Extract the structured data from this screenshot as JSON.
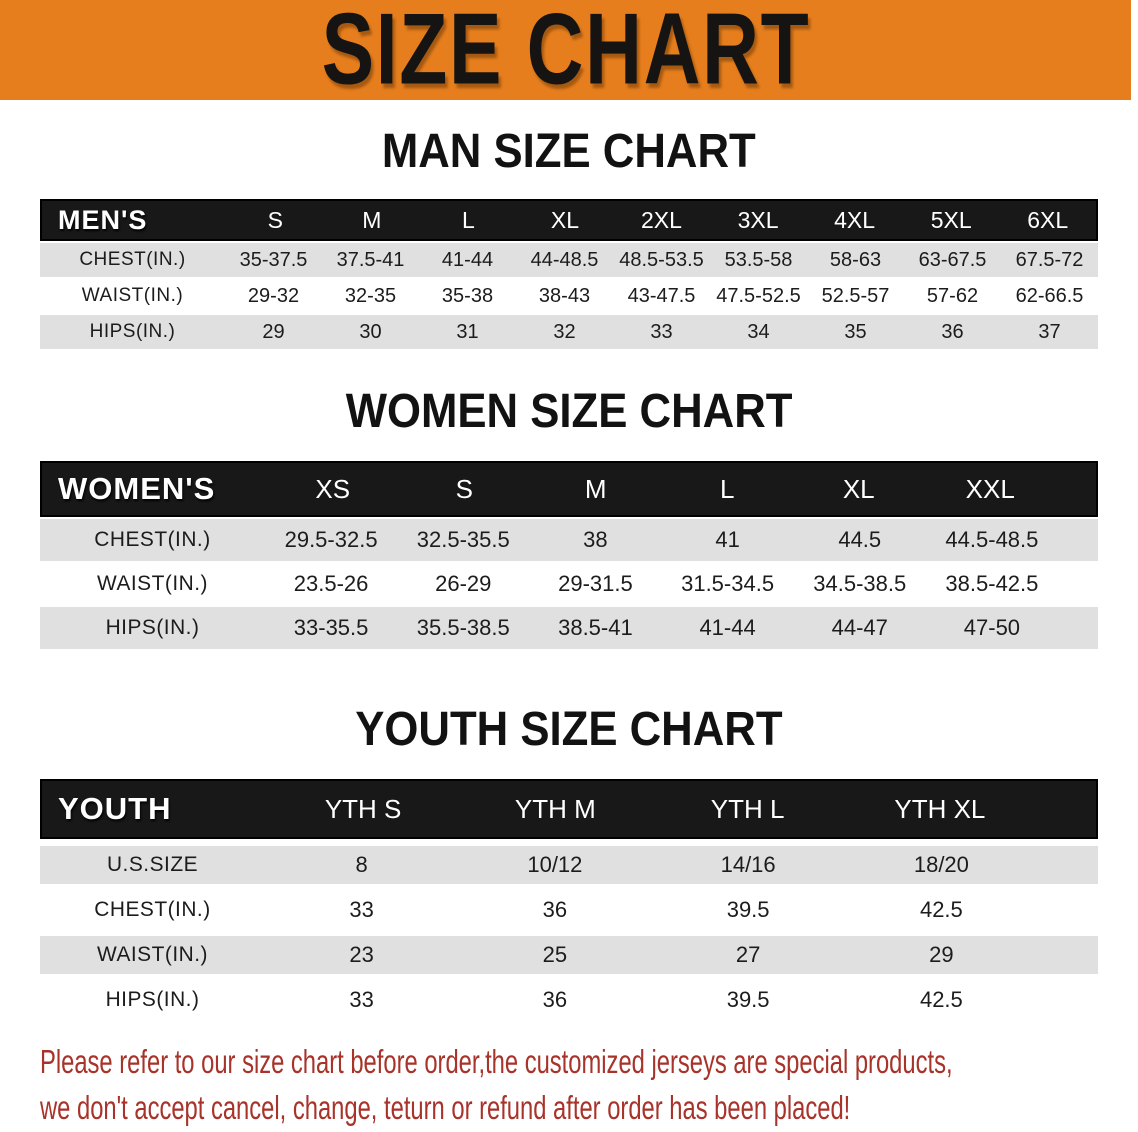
{
  "banner": {
    "title": "SIZE CHART"
  },
  "headings": {
    "men": "MAN SIZE CHART",
    "women": "WOMEN SIZE CHART",
    "youth": "YOUTH SIZE CHART"
  },
  "chart_data": [
    {
      "type": "table",
      "title": "MAN SIZE CHART",
      "label": "MEN'S",
      "columns": [
        "S",
        "M",
        "L",
        "XL",
        "2XL",
        "3XL",
        "4XL",
        "5XL",
        "6XL"
      ],
      "rows": [
        {
          "label": "CHEST(IN.)",
          "values": [
            "35-37.5",
            "37.5-41",
            "41-44",
            "44-48.5",
            "48.5-53.5",
            "53.5-58",
            "58-63",
            "63-67.5",
            "67.5-72"
          ]
        },
        {
          "label": "WAIST(IN.)",
          "values": [
            "29-32",
            "32-35",
            "35-38",
            "38-43",
            "43-47.5",
            "47.5-52.5",
            "52.5-57",
            "57-62",
            "62-66.5"
          ]
        },
        {
          "label": "HIPS(IN.)",
          "values": [
            "29",
            "30",
            "31",
            "32",
            "33",
            "34",
            "35",
            "36",
            "37"
          ]
        }
      ]
    },
    {
      "type": "table",
      "title": "WOMEN SIZE CHART",
      "label": "WOMEN'S",
      "columns": [
        "XS",
        "S",
        "M",
        "L",
        "XL",
        "XXL"
      ],
      "rows": [
        {
          "label": "CHEST(IN.)",
          "values": [
            "29.5-32.5",
            "32.5-35.5",
            "38",
            "41",
            "44.5",
            "44.5-48.5"
          ]
        },
        {
          "label": "WAIST(IN.)",
          "values": [
            "23.5-26",
            "26-29",
            "29-31.5",
            "31.5-34.5",
            "34.5-38.5",
            "38.5-42.5"
          ]
        },
        {
          "label": "HIPS(IN.)",
          "values": [
            "33-35.5",
            "35.5-38.5",
            "38.5-41",
            "41-44",
            "44-47",
            "47-50"
          ]
        }
      ]
    },
    {
      "type": "table",
      "title": "YOUTH SIZE CHART",
      "label": "YOUTH",
      "columns": [
        "YTH S",
        "YTH M",
        "YTH L",
        "YTH XL"
      ],
      "rows": [
        {
          "label": "U.S.SIZE",
          "values": [
            "8",
            "10/12",
            "14/16",
            "18/20"
          ]
        },
        {
          "label": "CHEST(IN.)",
          "values": [
            "33",
            "36",
            "39.5",
            "42.5"
          ]
        },
        {
          "label": "WAIST(IN.)",
          "values": [
            "23",
            "25",
            "27",
            "29"
          ]
        },
        {
          "label": "HIPS(IN.)",
          "values": [
            "33",
            "36",
            "39.5",
            "42.5"
          ]
        }
      ]
    }
  ],
  "disclaimer": {
    "line1": "Please refer to our size chart before order,the customized jerseys are special products,",
    "line2": "we don't accept cancel, change, teturn or refund after order has been placed!"
  },
  "colors": {
    "banner_orange": "#E67E1D",
    "header_black": "#181818",
    "row_gray": "#E0E0E0",
    "disclaimer_red": "#A8332A"
  }
}
